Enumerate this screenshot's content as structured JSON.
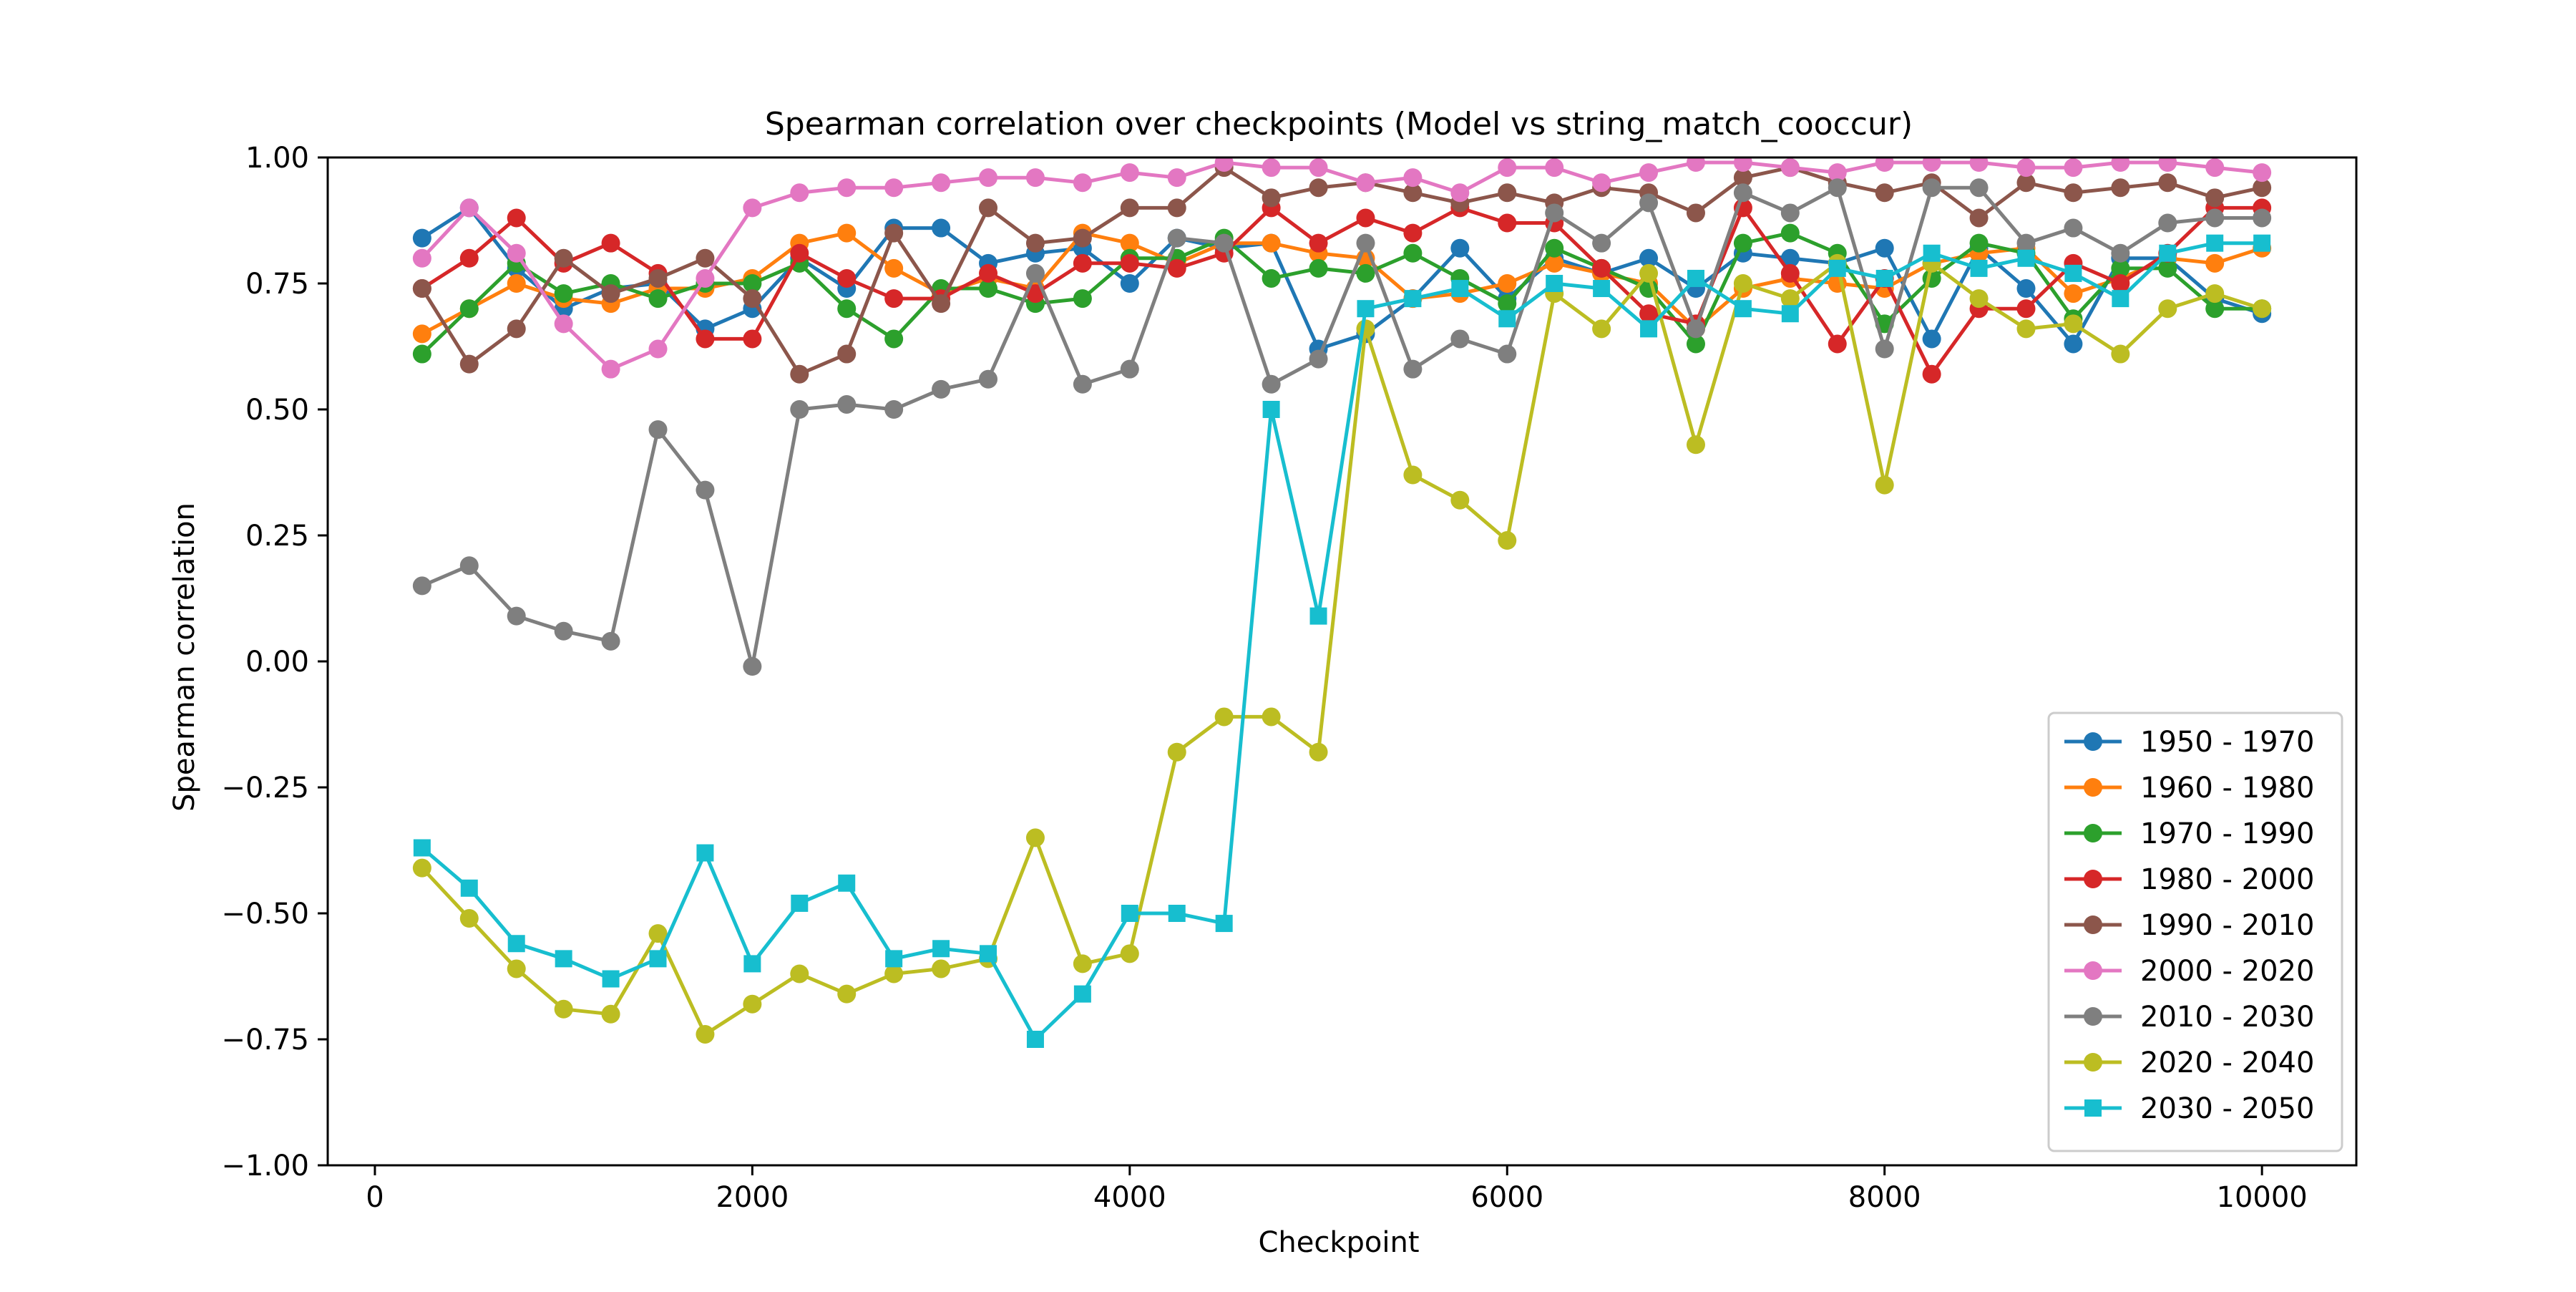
{
  "chart_data": {
    "type": "line",
    "title": "Spearman correlation over checkpoints (Model vs string_match_cooccur)",
    "xlabel": "Checkpoint",
    "ylabel": "Spearman correlation",
    "xlim": [
      -250,
      10500
    ],
    "ylim": [
      -1.0,
      1.0
    ],
    "xticks": [
      0,
      2000,
      4000,
      6000,
      8000,
      10000
    ],
    "xtick_labels": [
      "0",
      "2000",
      "4000",
      "6000",
      "8000",
      "10000"
    ],
    "yticks": [
      -1.0,
      -0.75,
      -0.5,
      -0.25,
      0.0,
      0.25,
      0.5,
      0.75,
      1.0
    ],
    "ytick_labels": [
      "−1.00",
      "−0.75",
      "−0.50",
      "−0.25",
      "0.00",
      "0.25",
      "0.50",
      "0.75",
      "1.00"
    ],
    "grid": false,
    "legend_position": "lower-right",
    "x": [
      250,
      500,
      750,
      1000,
      1250,
      1500,
      1750,
      2000,
      2250,
      2500,
      2750,
      3000,
      3250,
      3500,
      3750,
      4000,
      4250,
      4500,
      4750,
      5000,
      5250,
      5500,
      5750,
      6000,
      6250,
      6500,
      6750,
      7000,
      7250,
      7500,
      7750,
      8000,
      8250,
      8500,
      8750,
      9000,
      9250,
      9500,
      9750,
      10000
    ],
    "series": [
      {
        "name": "1950 - 1970",
        "color": "#1f77b4",
        "marker": "circle",
        "values": [
          0.84,
          0.9,
          0.78,
          0.7,
          0.74,
          0.75,
          0.66,
          0.7,
          0.8,
          0.74,
          0.86,
          0.86,
          0.79,
          0.81,
          0.82,
          0.75,
          0.84,
          0.82,
          0.83,
          0.62,
          0.65,
          0.72,
          0.82,
          0.72,
          0.8,
          0.77,
          0.8,
          0.74,
          0.81,
          0.8,
          0.79,
          0.82,
          0.64,
          0.82,
          0.74,
          0.63,
          0.8,
          0.8,
          0.72,
          0.69
        ]
      },
      {
        "name": "1960 - 1980",
        "color": "#ff7f0e",
        "marker": "circle",
        "values": [
          0.65,
          0.7,
          0.75,
          0.72,
          0.71,
          0.74,
          0.74,
          0.76,
          0.83,
          0.85,
          0.78,
          0.73,
          0.76,
          0.74,
          0.85,
          0.83,
          0.79,
          0.83,
          0.83,
          0.81,
          0.8,
          0.72,
          0.73,
          0.75,
          0.79,
          0.77,
          0.75,
          0.66,
          0.74,
          0.76,
          0.75,
          0.74,
          0.79,
          0.81,
          0.82,
          0.73,
          0.76,
          0.8,
          0.79,
          0.82
        ]
      },
      {
        "name": "1970 - 1990",
        "color": "#2ca02c",
        "marker": "circle",
        "values": [
          0.61,
          0.7,
          0.79,
          0.73,
          0.75,
          0.72,
          0.75,
          0.75,
          0.79,
          0.7,
          0.64,
          0.74,
          0.74,
          0.71,
          0.72,
          0.8,
          0.8,
          0.84,
          0.76,
          0.78,
          0.77,
          0.81,
          0.76,
          0.71,
          0.82,
          0.78,
          0.74,
          0.63,
          0.83,
          0.85,
          0.81,
          0.67,
          0.76,
          0.83,
          0.81,
          0.68,
          0.78,
          0.78,
          0.7,
          0.7
        ]
      },
      {
        "name": "1980 - 2000",
        "color": "#d62728",
        "marker": "circle",
        "values": [
          0.74,
          0.8,
          0.88,
          0.79,
          0.83,
          0.77,
          0.64,
          0.64,
          0.81,
          0.76,
          0.72,
          0.72,
          0.77,
          0.73,
          0.79,
          0.79,
          0.78,
          0.81,
          0.9,
          0.83,
          0.88,
          0.85,
          0.9,
          0.87,
          0.87,
          0.78,
          0.69,
          0.67,
          0.9,
          0.77,
          0.63,
          0.76,
          0.57,
          0.7,
          0.7,
          0.79,
          0.75,
          0.81,
          0.9,
          0.9
        ]
      },
      {
        "name": "1990 - 2010",
        "color": "#8c564b",
        "marker": "circle",
        "values": [
          0.74,
          0.59,
          0.66,
          0.8,
          0.73,
          0.76,
          0.8,
          0.72,
          0.57,
          0.61,
          0.85,
          0.71,
          0.9,
          0.83,
          0.84,
          0.9,
          0.9,
          0.98,
          0.92,
          0.94,
          0.95,
          0.93,
          0.91,
          0.93,
          0.91,
          0.94,
          0.93,
          0.89,
          0.96,
          0.98,
          0.95,
          0.93,
          0.95,
          0.88,
          0.95,
          0.93,
          0.94,
          0.95,
          0.92,
          0.94
        ]
      },
      {
        "name": "2000 - 2020",
        "color": "#e377c2",
        "marker": "circle",
        "values": [
          0.8,
          0.9,
          0.81,
          0.67,
          0.58,
          0.62,
          0.76,
          0.9,
          0.93,
          0.94,
          0.94,
          0.95,
          0.96,
          0.96,
          0.95,
          0.97,
          0.96,
          0.99,
          0.98,
          0.98,
          0.95,
          0.96,
          0.93,
          0.98,
          0.98,
          0.95,
          0.97,
          0.99,
          0.99,
          0.98,
          0.97,
          0.99,
          0.99,
          0.99,
          0.98,
          0.98,
          0.99,
          0.99,
          0.98,
          0.97
        ]
      },
      {
        "name": "2010 - 2030",
        "color": "#7f7f7f",
        "marker": "circle",
        "values": [
          0.15,
          0.19,
          0.09,
          0.06,
          0.04,
          0.46,
          0.34,
          -0.01,
          0.5,
          0.51,
          0.5,
          0.54,
          0.56,
          0.77,
          0.55,
          0.58,
          0.84,
          0.83,
          0.55,
          0.6,
          0.83,
          0.58,
          0.64,
          0.61,
          0.89,
          0.83,
          0.91,
          0.66,
          0.93,
          0.89,
          0.94,
          0.62,
          0.94,
          0.94,
          0.83,
          0.86,
          0.81,
          0.87,
          0.88,
          0.88
        ]
      },
      {
        "name": "2020 - 2040",
        "color": "#bcbd22",
        "marker": "circle",
        "values": [
          -0.41,
          -0.51,
          -0.61,
          -0.69,
          -0.7,
          -0.54,
          -0.74,
          -0.68,
          -0.62,
          -0.66,
          -0.62,
          -0.61,
          -0.59,
          -0.35,
          -0.6,
          -0.58,
          -0.18,
          -0.11,
          -0.11,
          -0.18,
          0.66,
          0.37,
          0.32,
          0.24,
          0.73,
          0.66,
          0.77,
          0.43,
          0.75,
          0.72,
          0.79,
          0.35,
          0.79,
          0.72,
          0.66,
          0.67,
          0.61,
          0.7,
          0.73,
          0.7
        ]
      },
      {
        "name": "2030 - 2050",
        "color": "#17becf",
        "marker": "square",
        "values": [
          -0.37,
          -0.45,
          -0.56,
          -0.59,
          -0.63,
          -0.59,
          -0.38,
          -0.6,
          -0.48,
          -0.44,
          -0.59,
          -0.57,
          -0.58,
          -0.75,
          -0.66,
          -0.5,
          -0.5,
          -0.52,
          0.5,
          0.09,
          0.7,
          0.72,
          0.74,
          0.68,
          0.75,
          0.74,
          0.66,
          0.76,
          0.7,
          0.69,
          0.78,
          0.76,
          0.81,
          0.78,
          0.8,
          0.77,
          0.72,
          0.81,
          0.83,
          0.83
        ]
      }
    ]
  }
}
